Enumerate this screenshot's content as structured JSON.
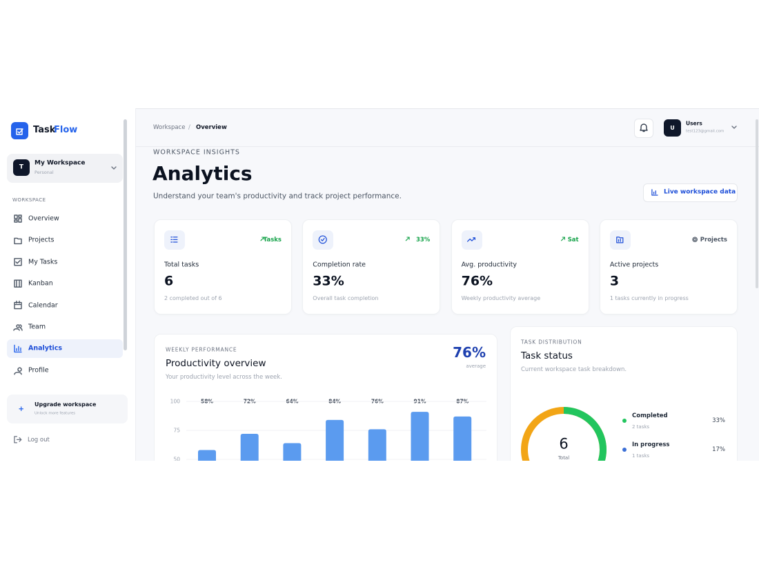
{
  "sidebar": {
    "brand_prefix": "Task",
    "brand_suffix": "Flow",
    "workspace": {
      "initial": "T",
      "name": "My Workspace",
      "plan": "Personal"
    },
    "section": "WORKSPACE",
    "nav": [
      {
        "label": "Overview",
        "active": false
      },
      {
        "label": "Projects",
        "active": false
      },
      {
        "label": "My Tasks",
        "active": false
      },
      {
        "label": "Kanban",
        "active": false
      },
      {
        "label": "Calendar",
        "active": false
      },
      {
        "label": "Team",
        "active": false
      },
      {
        "label": "Analytics",
        "active": true
      },
      {
        "label": "Profile",
        "active": false
      }
    ],
    "upgrade": {
      "title": "Upgrade workspace",
      "subtitle": "Unlock more features"
    },
    "logout": "Log out"
  },
  "header": {
    "breadcrumb": [
      "Workspace",
      "Overview"
    ],
    "user": {
      "initial": "U",
      "name": "Users",
      "email": "test123@gmail.com"
    }
  },
  "page": {
    "eyebrow": "WORKSPACE INSIGHTS",
    "title": "Analytics",
    "subtitle": "Understand your team's productivity and track project performance.",
    "action": "Live workspace data"
  },
  "stats": [
    {
      "badge": "Tasks",
      "label": "Total tasks",
      "value": "6",
      "note": "2 completed out of 6"
    },
    {
      "badge": "33%",
      "label": "Completion rate",
      "value": "33%",
      "note": "Overall task completion"
    },
    {
      "badge": "Sat",
      "label": "Avg. productivity",
      "value": "76%",
      "note": "Weekly productivity average"
    },
    {
      "badge": "Projects",
      "label": "Active projects",
      "value": "3",
      "note": "1 tasks currently in progress"
    }
  ],
  "weekly": {
    "eyebrow": "WEEKLY PERFORMANCE",
    "title": "Productivity overview",
    "subtitle": "Your productivity level across the week.",
    "average": "76%",
    "average_label": "average",
    "chart_data": {
      "type": "bar",
      "values": [
        58,
        72,
        64,
        84,
        76,
        91,
        87
      ],
      "value_labels": [
        "58%",
        "72%",
        "64%",
        "84%",
        "76%",
        "91%",
        "87%"
      ],
      "color": "#5b9bef",
      "ylim": [
        0,
        100
      ],
      "yticks": [
        100,
        75,
        50
      ],
      "grid": true
    }
  },
  "status": {
    "eyebrow": "TASK DISTRIBUTION",
    "title": "Task status",
    "subtitle": "Current workspace task breakdown.",
    "total": "6",
    "total_label": "Total",
    "chart_data": {
      "type": "donut",
      "series": [
        {
          "name": "Completed",
          "note": "2 tasks",
          "value": 33,
          "value_label": "33%",
          "color": "#22c55e"
        },
        {
          "name": "In progress",
          "note": "1 tasks",
          "value": 17,
          "value_label": "17%",
          "color": "#3b6fd6"
        }
      ],
      "rest_color": "#f2a516"
    }
  }
}
